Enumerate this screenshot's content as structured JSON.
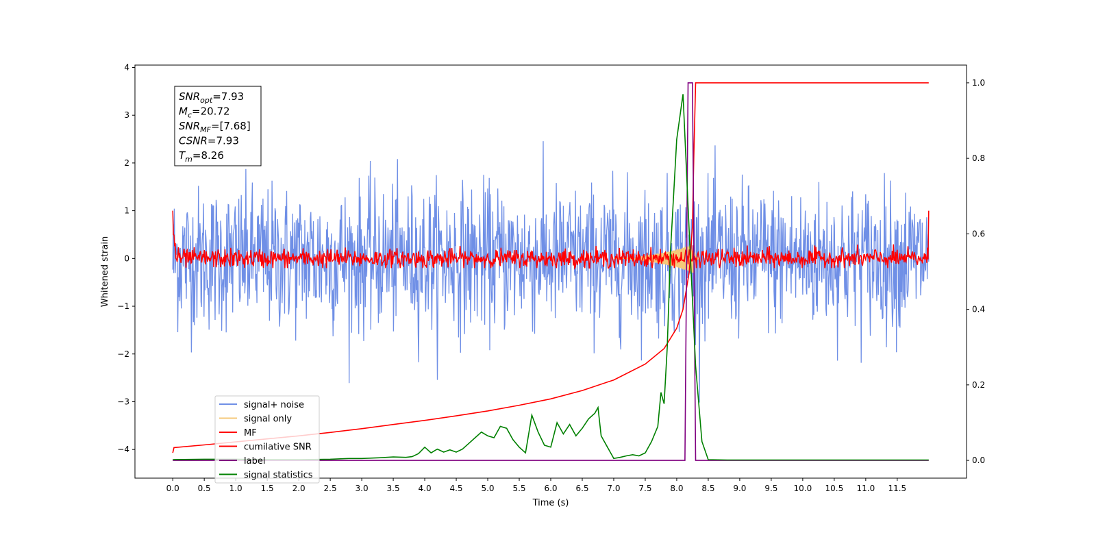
{
  "chart_data": {
    "type": "line",
    "xlabel": "Time (s)",
    "ylabel": "Whitened strain",
    "x_range": [
      -0.6,
      12.6
    ],
    "y_left_range": [
      -4.6,
      4.05
    ],
    "y_right_range": [
      -0.047,
      1.047
    ],
    "x_ticks": [
      "0.0",
      "0.5",
      "1.0",
      "1.5",
      "2.0",
      "2.5",
      "3.0",
      "3.5",
      "4.0",
      "4.5",
      "5.0",
      "5.5",
      "6.0",
      "6.5",
      "7.0",
      "7.5",
      "8.0",
      "8.5",
      "9.0",
      "9.5",
      "10.0",
      "10.5",
      "11.0",
      "11.5"
    ],
    "y_left_ticks": [
      "4",
      "3",
      "2",
      "1",
      "0",
      "−1",
      "−2",
      "−3",
      "−4"
    ],
    "y_right_ticks": [
      "1.0",
      "0.8",
      "0.6",
      "0.4",
      "0.2",
      "0.0"
    ],
    "grid": false,
    "legend_position": "lower-left",
    "info_box": {
      "snr_opt_label": "SNR",
      "snr_opt_sub": "opt",
      "snr_opt_value": "=7.93",
      "mc_label": "M",
      "mc_sub": "c",
      "mc_value": "=20.72",
      "snr_mf_label": "SNR",
      "snr_mf_sub": "MF",
      "snr_mf_value": "=[7.68]",
      "csnr_label": "CSNR",
      "csnr_value": "=7.93",
      "tm_label": "T",
      "tm_sub": "m",
      "tm_value": "=8.26"
    },
    "series": [
      {
        "name": "signal+ noise",
        "axis": "left",
        "color": "#6f8fe6",
        "duration": 12.0,
        "noise_std": 0.75,
        "samples": 1500
      },
      {
        "name": "signal only",
        "axis": "left",
        "color": "#f5c97a",
        "merger_time": 8.26,
        "peak_amplitude": 0.3
      },
      {
        "name": "MF",
        "axis": "left",
        "color": "#ff0000",
        "start_value": 1.0,
        "end_value": 1.0,
        "noise_std": 0.1
      },
      {
        "name": "cumilative SNR",
        "axis": "right",
        "color": "#ff0000",
        "x": [
          0.0,
          0.02,
          0.5,
          1.0,
          1.5,
          2.0,
          2.5,
          3.0,
          3.5,
          4.0,
          4.5,
          5.0,
          5.5,
          6.0,
          6.5,
          7.0,
          7.5,
          7.8,
          8.0,
          8.1,
          8.2,
          8.25,
          8.27,
          8.3,
          12.0
        ],
        "values": [
          0.02,
          0.034,
          0.041,
          0.049,
          0.057,
          0.065,
          0.074,
          0.084,
          0.095,
          0.106,
          0.118,
          0.131,
          0.146,
          0.163,
          0.185,
          0.213,
          0.255,
          0.296,
          0.35,
          0.4,
          0.5,
          0.62,
          0.8,
          1.0,
          1.0
        ]
      },
      {
        "name": "label",
        "axis": "right",
        "color": "#800080",
        "x": [
          0.0,
          8.13,
          8.18,
          8.25,
          8.3,
          12.0
        ],
        "values": [
          0.0,
          0.0,
          1.0,
          1.0,
          0.0,
          0.0
        ]
      },
      {
        "name": "signal statistics",
        "axis": "right",
        "color": "#008000",
        "x": [
          0.0,
          0.5,
          1.0,
          1.5,
          2.0,
          2.5,
          2.8,
          3.0,
          3.3,
          3.5,
          3.7,
          3.8,
          3.9,
          4.0,
          4.1,
          4.2,
          4.3,
          4.4,
          4.5,
          4.6,
          4.7,
          4.8,
          4.9,
          5.0,
          5.1,
          5.2,
          5.3,
          5.4,
          5.5,
          5.6,
          5.7,
          5.8,
          5.9,
          6.0,
          6.1,
          6.2,
          6.3,
          6.4,
          6.5,
          6.6,
          6.7,
          6.75,
          6.8,
          6.9,
          7.0,
          7.1,
          7.2,
          7.3,
          7.4,
          7.5,
          7.6,
          7.7,
          7.75,
          7.8,
          7.85,
          7.9,
          8.0,
          8.1,
          8.2,
          8.3,
          8.4,
          8.5,
          8.8,
          9.0,
          10.0,
          11.0,
          12.0
        ],
        "values": [
          0.002,
          0.003,
          0.003,
          0.002,
          0.002,
          0.003,
          0.005,
          0.005,
          0.007,
          0.009,
          0.008,
          0.01,
          0.018,
          0.035,
          0.02,
          0.03,
          0.022,
          0.028,
          0.022,
          0.03,
          0.045,
          0.06,
          0.075,
          0.065,
          0.06,
          0.09,
          0.085,
          0.055,
          0.035,
          0.02,
          0.12,
          0.075,
          0.04,
          0.035,
          0.1,
          0.07,
          0.095,
          0.065,
          0.085,
          0.11,
          0.125,
          0.14,
          0.065,
          0.035,
          0.005,
          0.008,
          0.012,
          0.015,
          0.012,
          0.02,
          0.05,
          0.09,
          0.18,
          0.15,
          0.3,
          0.55,
          0.85,
          0.97,
          0.6,
          0.25,
          0.05,
          0.002,
          0.001,
          0.001,
          0.001,
          0.001,
          0.001
        ]
      }
    ]
  }
}
